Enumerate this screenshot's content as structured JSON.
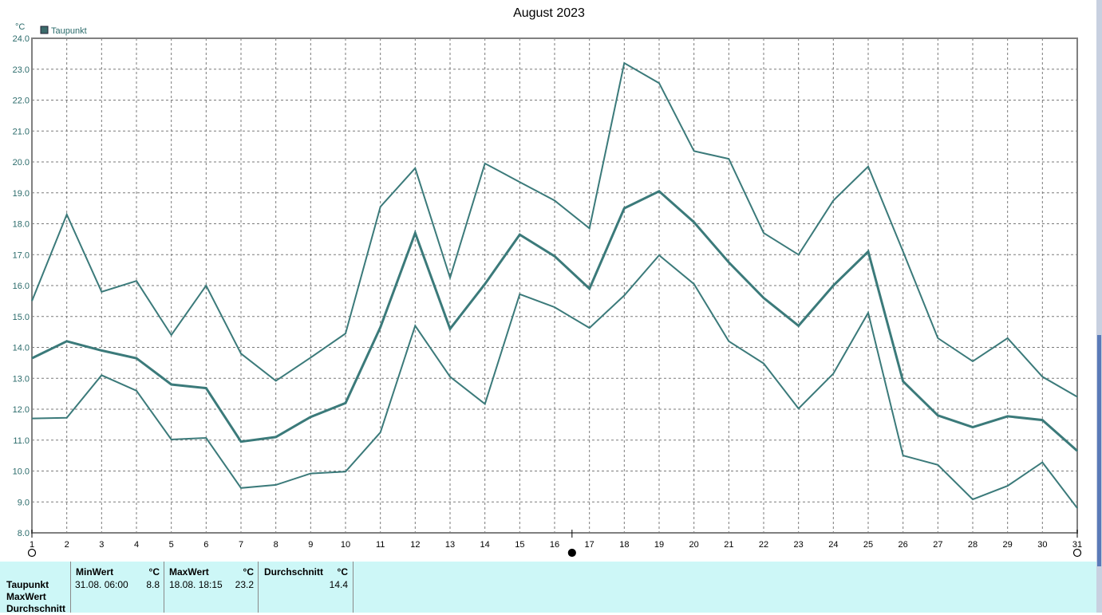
{
  "chart_data": {
    "type": "line",
    "title": "August 2023",
    "ylabel": "°C",
    "ylim": [
      8.0,
      24.0
    ],
    "y_ticks": [
      "8.0",
      "9.0",
      "10.0",
      "11.0",
      "12.0",
      "13.0",
      "14.0",
      "15.0",
      "16.0",
      "17.0",
      "18.0",
      "19.0",
      "20.0",
      "21.0",
      "22.0",
      "23.0",
      "24.0"
    ],
    "x": [
      1,
      2,
      3,
      4,
      5,
      6,
      7,
      8,
      9,
      10,
      11,
      12,
      13,
      14,
      15,
      16,
      17,
      18,
      19,
      20,
      21,
      22,
      23,
      24,
      25,
      26,
      27,
      28,
      29,
      30,
      31
    ],
    "x_ticks": [
      "1",
      "2",
      "3",
      "4",
      "5",
      "6",
      "7",
      "8",
      "9",
      "10",
      "11",
      "12",
      "13",
      "14",
      "15",
      "16",
      "17",
      "18",
      "19",
      "20",
      "21",
      "22",
      "23",
      "24",
      "25",
      "26",
      "27",
      "28",
      "29",
      "30",
      "31"
    ],
    "legend": [
      "Taupunkt"
    ],
    "legend_position": "top-left",
    "grid": true,
    "series": [
      {
        "role": "max",
        "values": [
          15.5,
          18.3,
          15.8,
          16.15,
          14.4,
          16.0,
          13.8,
          12.92,
          13.67,
          14.45,
          18.55,
          19.8,
          16.25,
          19.95,
          19.35,
          18.75,
          17.85,
          23.2,
          22.55,
          20.35,
          20.1,
          17.7,
          17.0,
          18.75,
          19.85,
          17.1,
          14.3,
          13.55,
          14.3,
          13.05,
          12.4
        ]
      },
      {
        "role": "avg",
        "values": [
          13.65,
          14.2,
          13.9,
          13.65,
          12.8,
          12.68,
          10.95,
          11.1,
          11.75,
          12.2,
          14.65,
          17.7,
          14.6,
          16.05,
          17.65,
          16.95,
          15.9,
          18.5,
          19.05,
          18.05,
          16.75,
          15.6,
          14.7,
          16.0,
          17.1,
          12.9,
          11.8,
          11.42,
          11.77,
          11.65,
          10.65
        ]
      },
      {
        "role": "min",
        "values": [
          11.7,
          11.72,
          13.1,
          12.6,
          11.02,
          11.07,
          9.45,
          9.55,
          9.92,
          9.98,
          11.25,
          14.7,
          13.05,
          12.17,
          15.72,
          15.3,
          14.63,
          15.68,
          16.98,
          16.05,
          14.2,
          13.48,
          12.02,
          13.15,
          15.12,
          10.5,
          10.2,
          9.08,
          9.52,
          10.28,
          8.8
        ]
      }
    ],
    "markers": [
      {
        "x": 1.0,
        "type": "open-circle"
      },
      {
        "x": 16.5,
        "type": "filled-circle"
      },
      {
        "x": 31.0,
        "type": "open-circle"
      }
    ],
    "colors": {
      "line": "#3b7a7a",
      "grid": "#7a7a7a",
      "axis": "#808080",
      "text": "#2b6b6b",
      "legend_swatch": "#3b6b6b"
    }
  },
  "stats": {
    "row_labels": [
      "Taupunkt",
      "MaxWert",
      "Durchschnitt"
    ],
    "columns": [
      {
        "header": "MinWert",
        "unit": "°C",
        "when": "31.08.  06:00",
        "value": "8.8"
      },
      {
        "header": "MaxWert",
        "unit": "°C",
        "when": "18.08.  18:15",
        "value": "23.2"
      },
      {
        "header": "Durchschnitt",
        "unit": "°C",
        "when": "",
        "value": "14.4"
      }
    ],
    "background": "#cdf7f7"
  }
}
